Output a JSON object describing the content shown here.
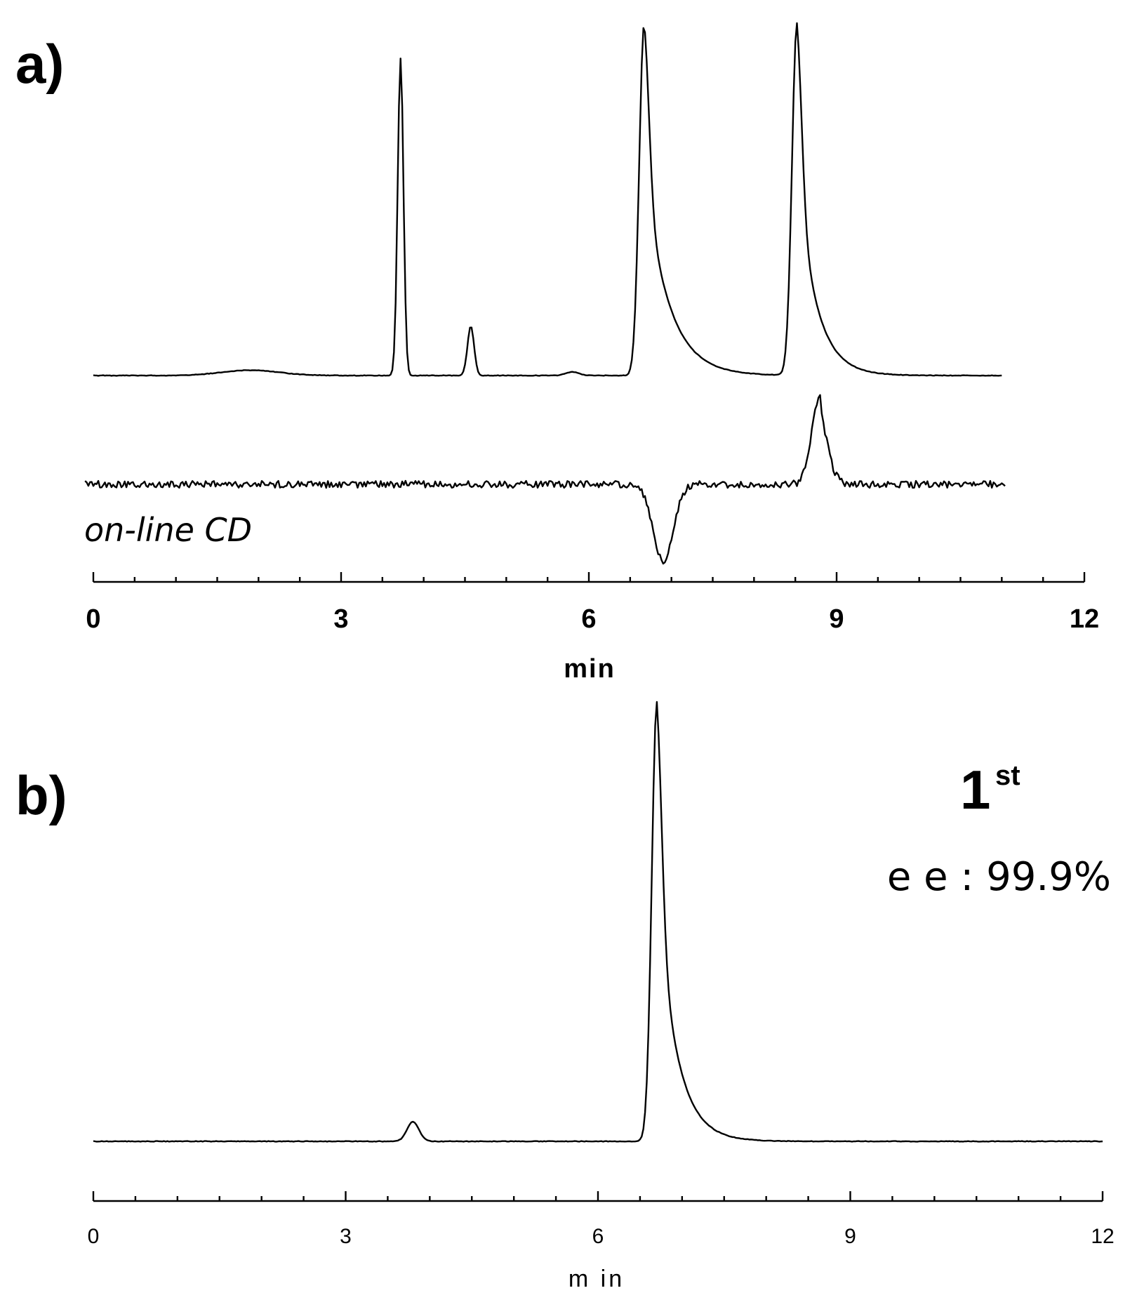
{
  "chart_data": [
    {
      "type": "line",
      "panel_label": "a)",
      "xlabel": "min",
      "ylabel": "",
      "xlim": [
        0,
        12
      ],
      "x_ticks": [
        "0",
        "3",
        "6",
        "9",
        "12"
      ],
      "trace_label": "on-line CD",
      "series": [
        {
          "peaks": [
            {
              "t": 1.9,
              "h": 0.015,
              "w": 0.35
            },
            {
              "t": 3.72,
              "h": 0.9,
              "w": 0.035
            },
            {
              "t": 4.57,
              "h": 0.14,
              "w": 0.04
            },
            {
              "t": 5.8,
              "h": 0.01,
              "w": 0.08
            },
            {
              "t": 6.67,
              "h": 1.0,
              "w": 0.06,
              "tail": 0.28
            },
            {
              "t": 8.52,
              "h": 1.0,
              "w": 0.06,
              "tail": 0.22
            }
          ],
          "t_range": [
            0,
            11.0
          ]
        },
        {
          "peaks": [
            {
              "t": 6.9,
              "h": -0.45,
              "w": 0.12
            },
            {
              "t": 8.8,
              "h": 0.5,
              "w": 0.1,
              "tail": 0.08
            }
          ],
          "t_range": [
            -0.1,
            11.05
          ]
        }
      ]
    },
    {
      "type": "line",
      "panel_label": "b)",
      "xlabel": "m in",
      "ylabel": "",
      "xlim": [
        0,
        12
      ],
      "x_ticks": [
        "0",
        "3",
        "6",
        "9",
        "12"
      ],
      "annotation": {
        "order": "1",
        "order_sup": "st",
        "ee": "e e : 99.9%"
      },
      "series": [
        {
          "peaks": [
            {
              "t": 3.8,
              "h": 0.045,
              "w": 0.07
            },
            {
              "t": 6.7,
              "h": 1.0,
              "w": 0.06,
              "tail": 0.22
            }
          ],
          "t_range": [
            0,
            12.0
          ]
        }
      ]
    }
  ]
}
